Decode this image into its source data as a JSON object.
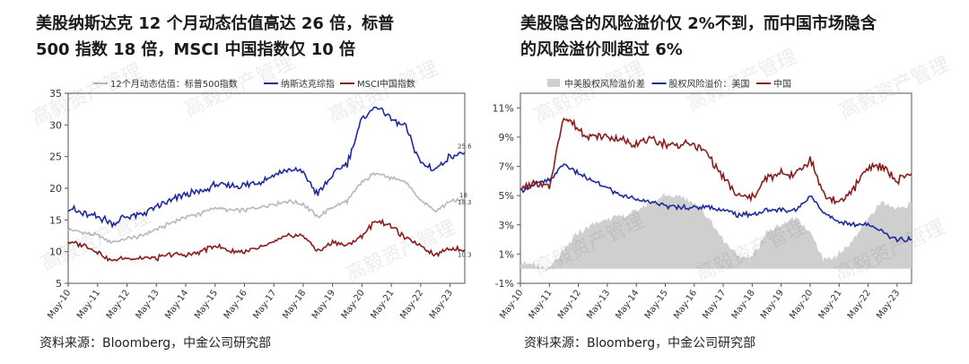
{
  "watermark": "高毅资产管理",
  "panels": [
    {
      "title_lines": [
        "美股纳斯达克 12 个月动态估值高达 26 倍，标普",
        "500 指数 18 倍，MSCI 中国指数仅 10 倍"
      ],
      "source": "资料来源：Bloomberg，中金公司研究部"
    },
    {
      "title_lines": [
        "美股隐含的风险溢价仅 2%不到，而中国市场隐含",
        "的风险溢价则超过 6%"
      ],
      "source": "资料来源：Bloomberg，中金公司研究部"
    }
  ],
  "chart_data": [
    {
      "type": "line",
      "x": [
        "May-10",
        "Nov-10",
        "May-11",
        "Nov-11",
        "May-12",
        "Nov-12",
        "May-13",
        "Nov-13",
        "May-14",
        "Nov-14",
        "May-15",
        "Nov-15",
        "May-16",
        "Nov-16",
        "May-17",
        "Nov-17",
        "May-18",
        "Nov-18",
        "May-19",
        "Nov-19",
        "May-20",
        "Nov-20",
        "May-21",
        "Nov-21",
        "May-22",
        "Nov-22",
        "May-23",
        "Jul-23"
      ],
      "xticks": [
        "May-10",
        "May-11",
        "May-12",
        "May-13",
        "May-14",
        "May-15",
        "May-16",
        "May-17",
        "May-18",
        "May-19",
        "May-20",
        "May-21",
        "May-22",
        "May-23"
      ],
      "ylim": [
        5,
        35
      ],
      "yticks": [
        5,
        10,
        15,
        20,
        25,
        30,
        35
      ],
      "series": [
        {
          "name": "12个月动态估值：标普500指数",
          "color": "#b8b8b8",
          "values": [
            13.5,
            13,
            12.5,
            11.5,
            12,
            12.5,
            13.5,
            14.5,
            15.5,
            16,
            17,
            16.5,
            16.5,
            17,
            17.5,
            18,
            17.5,
            15.5,
            17,
            18,
            21,
            22.5,
            21.5,
            21,
            18,
            16.5,
            18,
            18.3
          ]
        },
        {
          "name": "纳斯达克综指",
          "color": "#1f2a9e",
          "values": [
            17,
            16,
            15.5,
            14.5,
            15.5,
            16,
            17,
            18,
            19,
            19.5,
            20.5,
            20.5,
            20.5,
            21,
            22,
            23,
            22.5,
            19,
            22,
            24,
            31,
            33,
            31,
            29.5,
            24,
            23,
            25,
            25.6
          ]
        },
        {
          "name": "MSCI中国指数",
          "color": "#8b1c1c",
          "values": [
            11.5,
            11,
            10,
            8.5,
            9,
            9,
            9,
            9.5,
            9.5,
            10,
            11,
            10,
            10,
            10.5,
            11.5,
            12.5,
            12.5,
            10,
            11.5,
            11,
            12.5,
            15,
            14,
            12,
            11,
            9.5,
            10.5,
            10.3
          ]
        }
      ],
      "labels": {
        "nasdaq_end": "25.6",
        "sp_end": "18.3",
        "msci_end": "10.3",
        "sp_mid": "18"
      }
    },
    {
      "type": "line",
      "x": [
        "May-10",
        "Nov-10",
        "May-11",
        "Nov-11",
        "May-12",
        "Nov-12",
        "May-13",
        "Nov-13",
        "May-14",
        "Nov-14",
        "May-15",
        "Nov-15",
        "May-16",
        "Nov-16",
        "May-17",
        "Nov-17",
        "May-18",
        "Nov-18",
        "May-19",
        "Nov-19",
        "May-20",
        "Nov-20",
        "May-21",
        "Nov-21",
        "May-22",
        "Nov-22",
        "May-23",
        "Jul-23"
      ],
      "xticks": [
        "May-10",
        "May-11",
        "May-12",
        "May-13",
        "May-14",
        "May-15",
        "May-16",
        "May-17",
        "May-18",
        "May-19",
        "May-20",
        "May-21",
        "May-22",
        "May-23"
      ],
      "ylim": [
        -1,
        12
      ],
      "yticks": [
        -1,
        1,
        3,
        5,
        7,
        9,
        11
      ],
      "ytick_labels": [
        "-1%",
        "1%",
        "3%",
        "5%",
        "7%",
        "9%",
        "11%"
      ],
      "series": [
        {
          "name": "中美股权风险溢价差",
          "color": "#cfcfcf",
          "kind": "area",
          "values": [
            0.5,
            0.2,
            0,
            1.2,
            2.5,
            3,
            3.5,
            3.5,
            4,
            4.5,
            5,
            5,
            4.5,
            3.5,
            2,
            0.8,
            0.8,
            2.5,
            3,
            3.5,
            2.5,
            0.5,
            1,
            2,
            3.5,
            4.5,
            4,
            4.5
          ]
        },
        {
          "name": "股权风险溢价：美国",
          "color": "#1f2a9e",
          "values": [
            5.3,
            5.8,
            6,
            7.2,
            6.5,
            6,
            5.5,
            5,
            4.8,
            4.5,
            4.3,
            4.2,
            4.2,
            4.2,
            4,
            3.7,
            3.7,
            4,
            4,
            4,
            5,
            3.8,
            3.2,
            3,
            3,
            2.5,
            2,
            2
          ]
        },
        {
          "name": "中国",
          "color": "#8b1c1c",
          "values": [
            5.5,
            5.8,
            5.5,
            10.5,
            9.5,
            9,
            9,
            8.8,
            8.6,
            8.8,
            8.5,
            8.5,
            8.5,
            7.8,
            6.2,
            5,
            4.8,
            6.2,
            6.5,
            6.5,
            7.5,
            5,
            4.5,
            5.5,
            7,
            7,
            6,
            6.5
          ]
        }
      ]
    }
  ]
}
